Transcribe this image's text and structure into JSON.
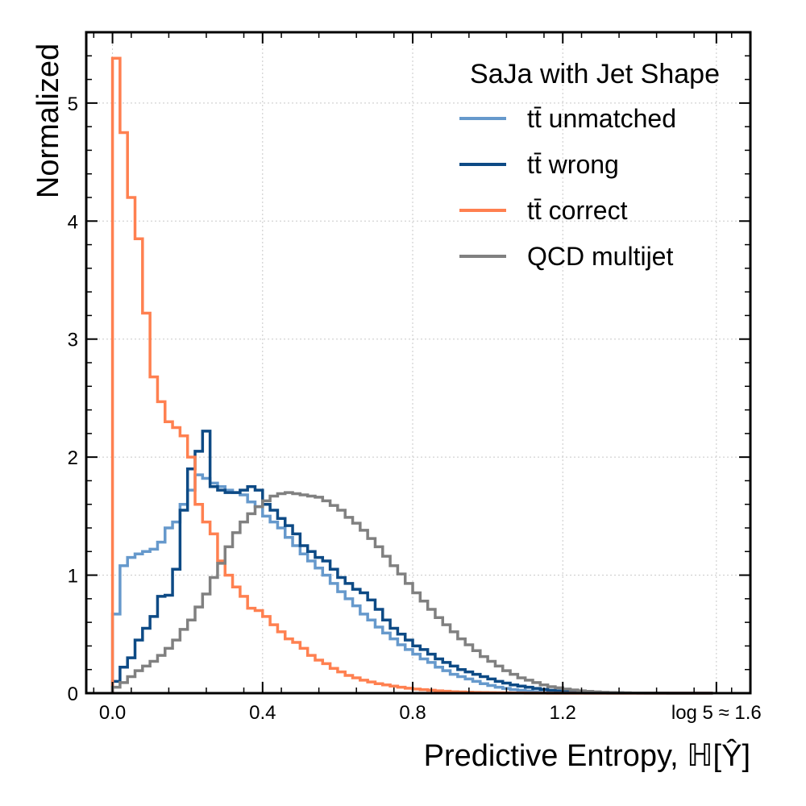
{
  "chart_data": {
    "type": "line",
    "ylabel": "Normalized",
    "xlabel": "Predictive Entropy, ℍ[Ŷ]",
    "xlim": [
      -0.07,
      1.7
    ],
    "ylim": [
      0,
      5.6
    ],
    "x_ticks": [
      0.0,
      0.4,
      0.8,
      1.2
    ],
    "x_tick_labels": [
      "0.0",
      "0.4",
      "0.8",
      "1.2"
    ],
    "x_extra_tick": {
      "x": 1.6094,
      "label": "log 5 ≈ 1.6"
    },
    "y_ticks": [
      0,
      1,
      2,
      3,
      4,
      5
    ],
    "y_tick_labels": [
      "0",
      "1",
      "2",
      "3",
      "4",
      "5"
    ],
    "grid": true,
    "legend_title": "SaJa with Jet Shape",
    "legend_position": "top-right",
    "bin_edges": [
      0.0,
      0.02,
      0.04,
      0.06,
      0.08,
      0.1,
      0.12,
      0.14,
      0.16,
      0.18,
      0.2,
      0.22,
      0.24,
      0.26,
      0.28,
      0.3,
      0.32,
      0.34,
      0.36,
      0.38,
      0.4,
      0.42,
      0.44,
      0.46,
      0.48,
      0.5,
      0.52,
      0.54,
      0.56,
      0.58,
      0.6,
      0.62,
      0.64,
      0.66,
      0.68,
      0.7,
      0.72,
      0.74,
      0.76,
      0.78,
      0.8,
      0.82,
      0.84,
      0.86,
      0.88,
      0.9,
      0.92,
      0.94,
      0.96,
      0.98,
      1.0,
      1.02,
      1.04,
      1.06,
      1.08,
      1.1,
      1.12,
      1.14,
      1.16,
      1.18,
      1.2,
      1.22,
      1.24,
      1.26,
      1.28,
      1.3,
      1.32,
      1.34,
      1.36,
      1.38,
      1.4,
      1.42,
      1.44,
      1.46,
      1.48,
      1.5,
      1.52,
      1.54,
      1.56,
      1.58,
      1.6
    ],
    "series": [
      {
        "name": "tt̄ unmatched",
        "color": "#6699cc",
        "values": [
          0.67,
          1.08,
          1.15,
          1.18,
          1.2,
          1.22,
          1.28,
          1.4,
          1.45,
          1.6,
          1.72,
          1.85,
          1.82,
          1.78,
          1.75,
          1.72,
          1.7,
          1.68,
          1.62,
          1.58,
          1.5,
          1.45,
          1.4,
          1.32,
          1.25,
          1.18,
          1.12,
          1.06,
          1.0,
          0.93,
          0.86,
          0.8,
          0.74,
          0.67,
          0.62,
          0.56,
          0.51,
          0.46,
          0.41,
          0.37,
          0.33,
          0.29,
          0.26,
          0.22,
          0.19,
          0.16,
          0.14,
          0.12,
          0.1,
          0.08,
          0.065,
          0.05,
          0.04,
          0.03,
          0.025,
          0.018,
          0.012,
          0.008,
          0.006,
          0.004,
          0.003,
          0.002,
          0.0015,
          0.001,
          0.0008,
          0.0006,
          0.0004,
          0.0003,
          0.0002,
          0.0001,
          0.0001,
          0.0001,
          0.0,
          0.0,
          0.0,
          0.0,
          0.0,
          0.0,
          0.0,
          0.0
        ]
      },
      {
        "name": "tt̄ wrong",
        "color": "#0d4a85",
        "values": [
          0.1,
          0.22,
          0.3,
          0.45,
          0.55,
          0.65,
          0.82,
          0.83,
          1.05,
          1.55,
          1.9,
          2.05,
          2.22,
          1.75,
          1.72,
          1.7,
          1.7,
          1.72,
          1.75,
          1.72,
          1.6,
          1.55,
          1.48,
          1.42,
          1.35,
          1.25,
          1.2,
          1.15,
          1.12,
          1.05,
          0.98,
          0.93,
          0.88,
          0.85,
          0.79,
          0.71,
          0.62,
          0.55,
          0.5,
          0.45,
          0.4,
          0.37,
          0.33,
          0.29,
          0.26,
          0.23,
          0.2,
          0.18,
          0.16,
          0.14,
          0.12,
          0.1,
          0.085,
          0.07,
          0.06,
          0.05,
          0.04,
          0.032,
          0.025,
          0.02,
          0.015,
          0.012,
          0.01,
          0.008,
          0.006,
          0.005,
          0.004,
          0.003,
          0.002,
          0.0015,
          0.001,
          0.001,
          0.0005,
          0.0005,
          0.0,
          0.0,
          0.0,
          0.0,
          0.0,
          0.0
        ]
      },
      {
        "name": "tt̄ correct",
        "color": "#ff8050",
        "values": [
          5.38,
          4.75,
          4.2,
          3.85,
          3.22,
          2.68,
          2.47,
          2.3,
          2.25,
          2.18,
          2.0,
          1.6,
          1.45,
          1.35,
          1.12,
          1.0,
          0.9,
          0.82,
          0.72,
          0.7,
          0.65,
          0.58,
          0.52,
          0.46,
          0.43,
          0.38,
          0.32,
          0.28,
          0.25,
          0.21,
          0.18,
          0.15,
          0.13,
          0.11,
          0.095,
          0.08,
          0.07,
          0.06,
          0.05,
          0.042,
          0.035,
          0.03,
          0.025,
          0.02,
          0.016,
          0.012,
          0.01,
          0.008,
          0.006,
          0.005,
          0.004,
          0.003,
          0.0025,
          0.002,
          0.0015,
          0.001,
          0.0008,
          0.0006,
          0.0004,
          0.0003,
          0.0002,
          0.0001,
          0.0001,
          0.0001,
          0.0,
          0.0,
          0.0,
          0.0,
          0.0,
          0.0,
          0.0,
          0.0,
          0.0,
          0.0,
          0.0,
          0.0,
          0.0,
          0.0,
          0.0,
          0.0
        ]
      },
      {
        "name": "QCD multijet",
        "color": "#808080",
        "values": [
          0.05,
          0.09,
          0.14,
          0.19,
          0.23,
          0.27,
          0.32,
          0.38,
          0.45,
          0.54,
          0.62,
          0.73,
          0.84,
          0.98,
          1.1,
          1.24,
          1.36,
          1.45,
          1.52,
          1.58,
          1.63,
          1.67,
          1.69,
          1.7,
          1.69,
          1.68,
          1.67,
          1.66,
          1.63,
          1.59,
          1.55,
          1.49,
          1.44,
          1.38,
          1.31,
          1.24,
          1.16,
          1.08,
          1.01,
          0.93,
          0.85,
          0.78,
          0.71,
          0.64,
          0.58,
          0.52,
          0.46,
          0.41,
          0.36,
          0.31,
          0.27,
          0.23,
          0.19,
          0.16,
          0.13,
          0.11,
          0.09,
          0.07,
          0.055,
          0.045,
          0.035,
          0.027,
          0.02,
          0.015,
          0.011,
          0.008,
          0.006,
          0.004,
          0.003,
          0.002,
          0.0015,
          0.001,
          0.0008,
          0.0005,
          0.0003,
          0.0002,
          0.0001,
          0.0001,
          0.0,
          0.0
        ]
      }
    ]
  }
}
